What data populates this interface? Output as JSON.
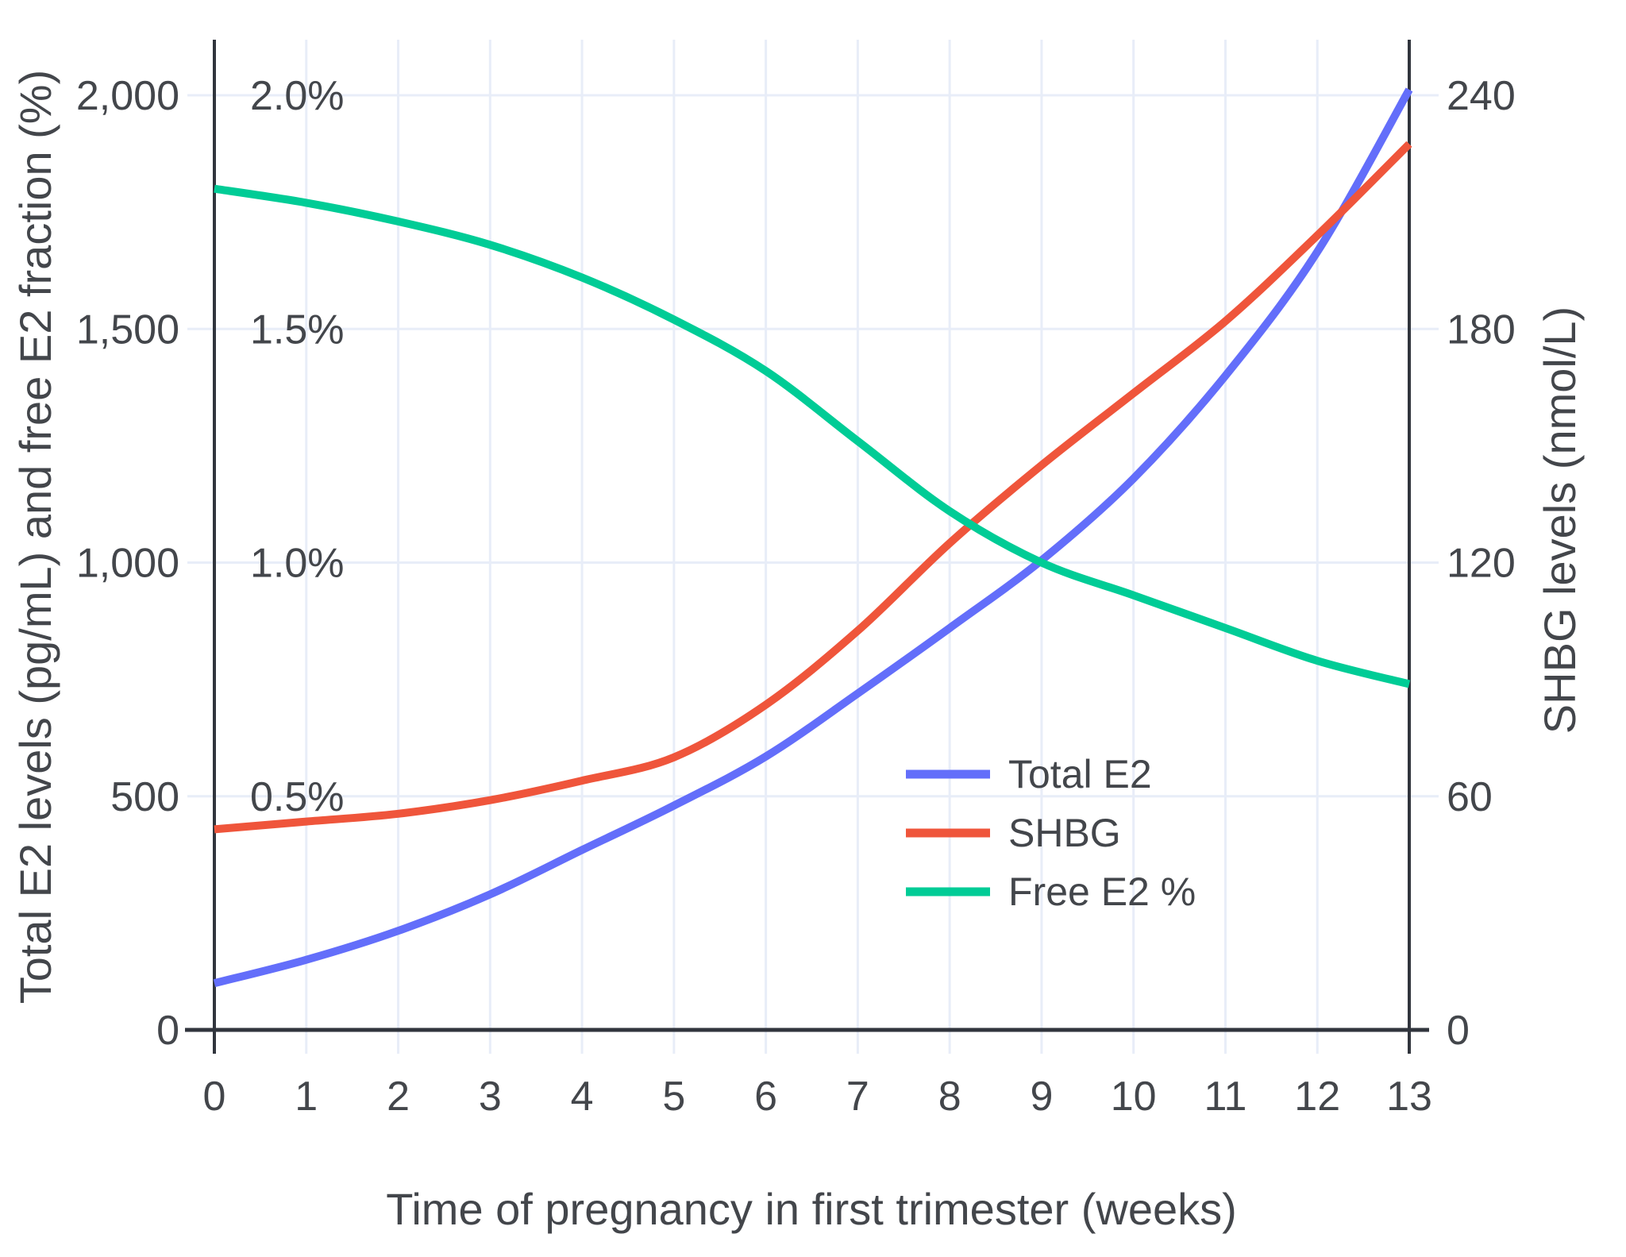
{
  "chart_data": {
    "type": "line",
    "title": "",
    "x_label": "Time of pregnancy in first trimester (weeks)",
    "y_left_label": "Total E2 levels (pg/mL) and free E2 fraction (%)",
    "y_right_label": "SHBG levels (nmol/L)",
    "x": [
      0,
      1,
      2,
      3,
      4,
      5,
      6,
      7,
      8,
      9,
      10,
      11,
      12,
      13
    ],
    "x_tick_labels": [
      "0",
      "1",
      "2",
      "3",
      "4",
      "5",
      "6",
      "7",
      "8",
      "9",
      "10",
      "11",
      "12",
      "13"
    ],
    "left_axis": {
      "ticks": [
        0,
        500,
        1000,
        1500,
        2000
      ],
      "tick_labels": [
        "0",
        "500",
        "1,000",
        "1,500",
        "2,000"
      ],
      "range": [
        0,
        2120
      ],
      "units": "pg/mL"
    },
    "left_percent_labels": [
      {
        "value": 500,
        "label": "0.5%"
      },
      {
        "value": 1000,
        "label": "1.0%"
      },
      {
        "value": 1500,
        "label": "1.5%"
      },
      {
        "value": 2000,
        "label": "2.0%"
      }
    ],
    "right_axis": {
      "ticks": [
        0,
        60,
        120,
        180,
        240
      ],
      "tick_labels": [
        "0",
        "60",
        "120",
        "180",
        "240"
      ],
      "range": [
        0,
        254
      ],
      "units": "nmol/L"
    },
    "grid": true,
    "legend_position": "inside-lower-right",
    "series": [
      {
        "name": "Total E2",
        "axis": "left",
        "unit": "pg/mL",
        "color": "#636EFA",
        "values": [
          100,
          150,
          212,
          290,
          385,
          480,
          585,
          720,
          860,
          1005,
          1180,
          1400,
          1665,
          2012
        ]
      },
      {
        "name": "SHBG",
        "axis": "right",
        "unit": "nmol/L",
        "color": "#EF553B",
        "values": [
          51.5,
          53.5,
          55.5,
          59,
          64,
          70,
          83.5,
          102.5,
          125,
          145,
          163.5,
          182,
          204,
          227.5
        ]
      },
      {
        "name": "Free E2 %",
        "axis": "left-percent",
        "unit": "%",
        "color": "#00CC96",
        "values": [
          1.8,
          1.77,
          1.73,
          1.68,
          1.61,
          1.52,
          1.41,
          1.26,
          1.11,
          1.0,
          0.93,
          0.86,
          0.79,
          0.74
        ]
      }
    ]
  },
  "legend": {
    "items": [
      {
        "label": "Total E2",
        "color": "#636EFA"
      },
      {
        "label": "SHBG",
        "color": "#EF553B"
      },
      {
        "label": "Free E2 %",
        "color": "#00CC96"
      }
    ]
  },
  "style": {
    "background": "#ffffff",
    "grid_color": "#E8EDF8",
    "axis_color": "#31353d",
    "text_color": "#43464b",
    "series_line_width": 10
  }
}
